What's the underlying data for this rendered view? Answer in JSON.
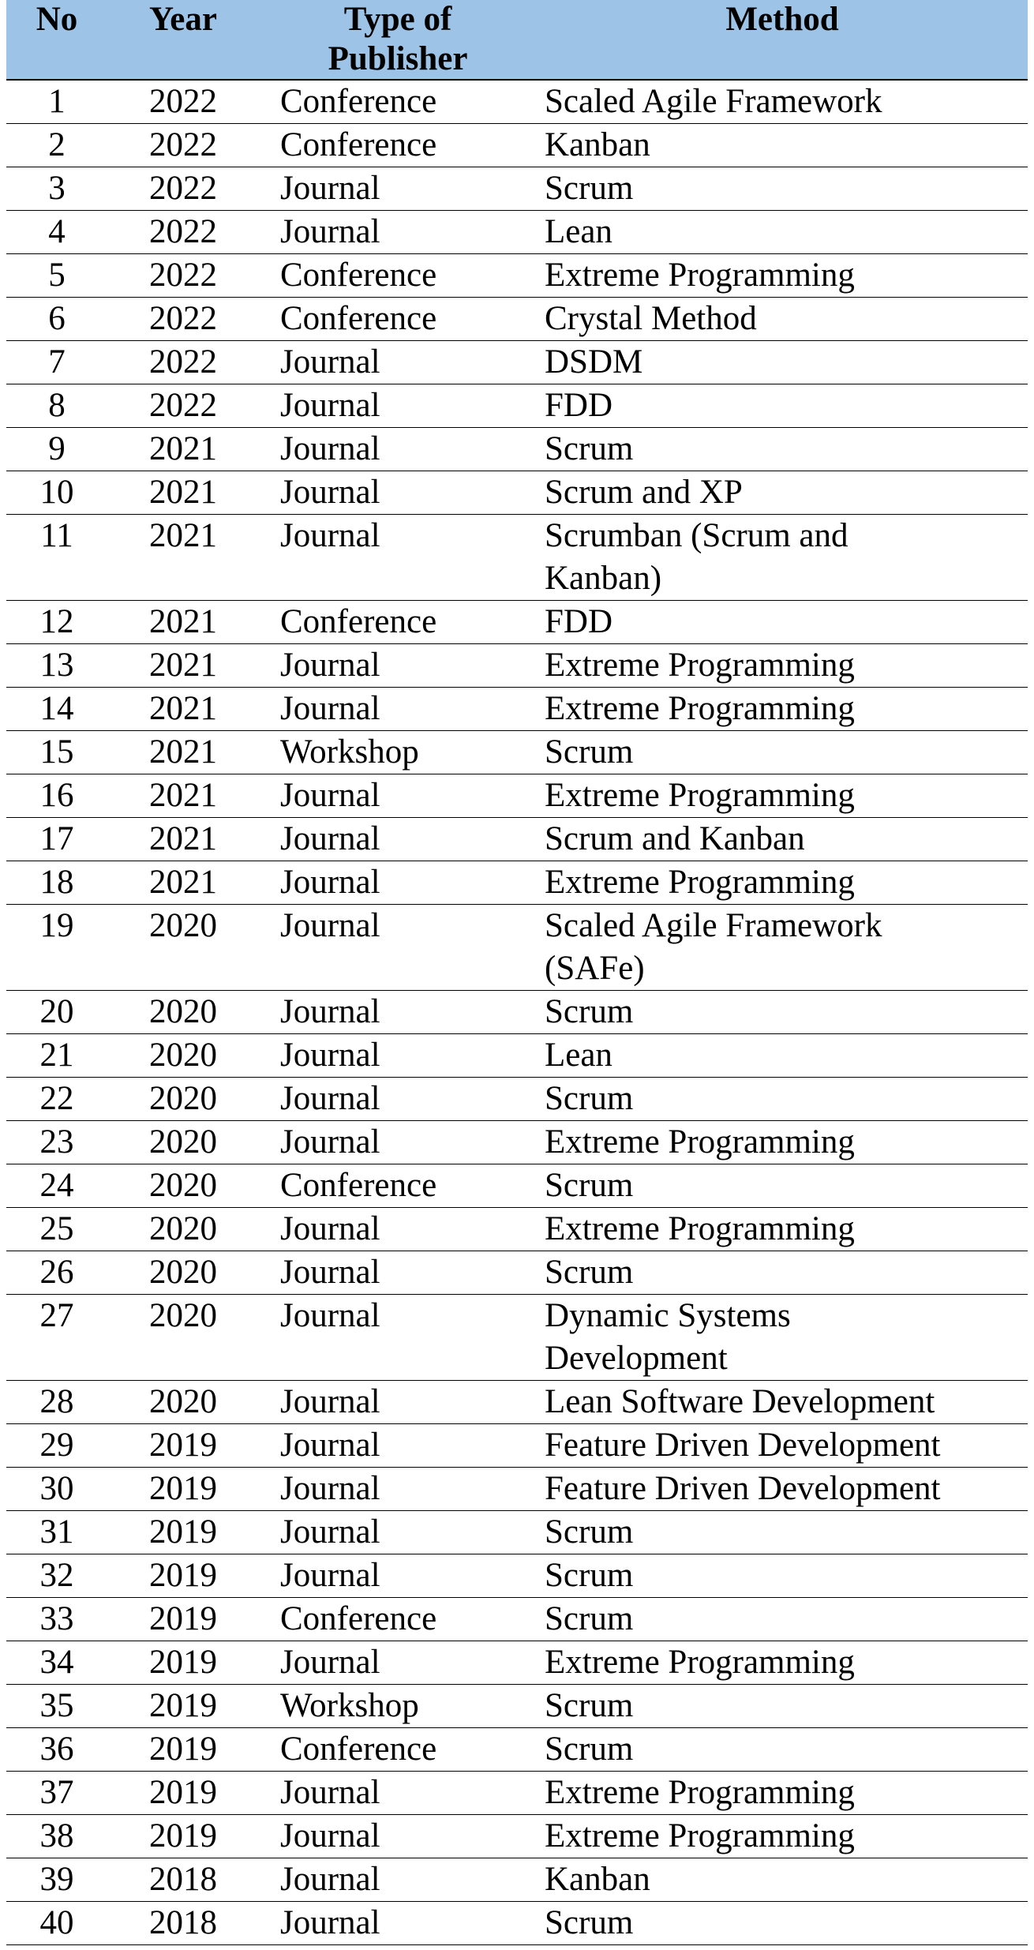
{
  "table": {
    "header": [
      "No",
      "Year",
      "Type of\nPublisher",
      "Method"
    ],
    "rows": [
      [
        "1",
        "2022",
        "Conference",
        "Scaled Agile Framework"
      ],
      [
        "2",
        "2022",
        "Conference",
        "Kanban"
      ],
      [
        "3",
        "2022",
        "Journal",
        "Scrum"
      ],
      [
        "4",
        "2022",
        "Journal",
        "Lean"
      ],
      [
        "5",
        "2022",
        "Conference",
        "Extreme Programming"
      ],
      [
        "6",
        "2022",
        "Conference",
        "Crystal Method"
      ],
      [
        "7",
        "2022",
        "Journal",
        "DSDM"
      ],
      [
        "8",
        "2022",
        "Journal",
        "FDD"
      ],
      [
        "9",
        "2021",
        "Journal",
        "Scrum"
      ],
      [
        "10",
        "2021",
        "Journal",
        "Scrum and XP"
      ],
      [
        "11",
        "2021",
        "Journal",
        "Scrumban (Scrum and\nKanban)"
      ],
      [
        "12",
        "2021",
        "Conference",
        "FDD"
      ],
      [
        "13",
        "2021",
        "Journal",
        "Extreme Programming"
      ],
      [
        "14",
        "2021",
        "Journal",
        "Extreme Programming"
      ],
      [
        "15",
        "2021",
        "Workshop",
        "Scrum"
      ],
      [
        "16",
        "2021",
        "Journal",
        "Extreme Programming"
      ],
      [
        "17",
        "2021",
        "Journal",
        "Scrum and Kanban"
      ],
      [
        "18",
        "2021",
        "Journal",
        "Extreme Programming"
      ],
      [
        "19",
        "2020",
        "Journal",
        "Scaled Agile Framework\n(SAFe)"
      ],
      [
        "20",
        "2020",
        "Journal",
        "Scrum"
      ],
      [
        "21",
        "2020",
        "Journal",
        "Lean"
      ],
      [
        "22",
        "2020",
        "Journal",
        "Scrum"
      ],
      [
        "23",
        "2020",
        "Journal",
        "Extreme Programming"
      ],
      [
        "24",
        "2020",
        "Conference",
        "Scrum"
      ],
      [
        "25",
        "2020",
        "Journal",
        "Extreme Programming"
      ],
      [
        "26",
        "2020",
        "Journal",
        "Scrum"
      ],
      [
        "27",
        "2020",
        "Journal",
        "Dynamic Systems\nDevelopment"
      ],
      [
        "28",
        "2020",
        "Journal",
        "Lean Software Development"
      ],
      [
        "29",
        "2019",
        "Journal",
        "Feature Driven Development"
      ],
      [
        "30",
        "2019",
        "Journal",
        "Feature Driven Development"
      ],
      [
        "31",
        "2019",
        "Journal",
        "Scrum"
      ],
      [
        "32",
        "2019",
        "Journal",
        "Scrum"
      ],
      [
        "33",
        "2019",
        "Conference",
        "Scrum"
      ],
      [
        "34",
        "2019",
        "Journal",
        "Extreme Programming"
      ],
      [
        "35",
        "2019",
        "Workshop",
        "Scrum"
      ],
      [
        "36",
        "2019",
        "Conference",
        "Scrum"
      ],
      [
        "37",
        "2019",
        "Journal",
        "Extreme Programming"
      ],
      [
        "38",
        "2019",
        "Journal",
        "Extreme Programming"
      ],
      [
        "39",
        "2018",
        "Journal",
        "Kanban"
      ],
      [
        "40",
        "2018",
        "Journal",
        "Scrum"
      ]
    ]
  }
}
